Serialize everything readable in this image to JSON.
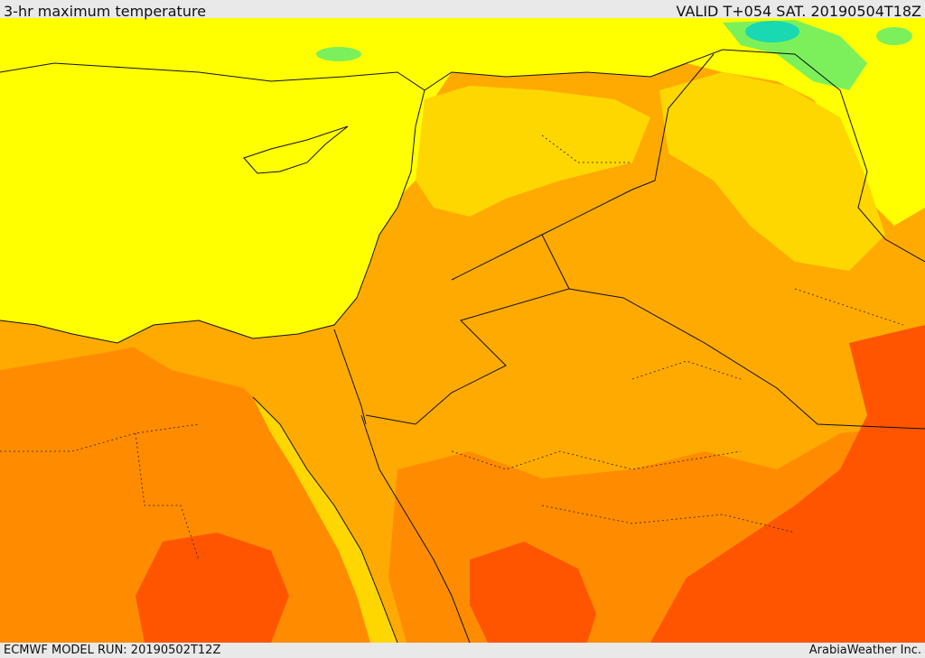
{
  "header": {
    "title": "3-hr maximum temperature",
    "valid": "VALID T+054 SAT. 20190504T18Z"
  },
  "footer": {
    "model_run": "ECMWF MODEL RUN: 20190502T12Z",
    "credit": "ArabiaWeather Inc."
  },
  "map": {
    "field": "3-hr maximum temperature",
    "palette": {
      "sea_and_cool": "#ffff00",
      "mild": "#ffd700",
      "warm": "#ffaa00",
      "hot": "#ff8c00",
      "very_hot": "#ff5500",
      "extreme": "#ff3300",
      "cool_green": "#7cf05a",
      "cold_cyan": "#19d9b3"
    },
    "icons": [
      "country-border-lines",
      "province-border-lines"
    ]
  }
}
